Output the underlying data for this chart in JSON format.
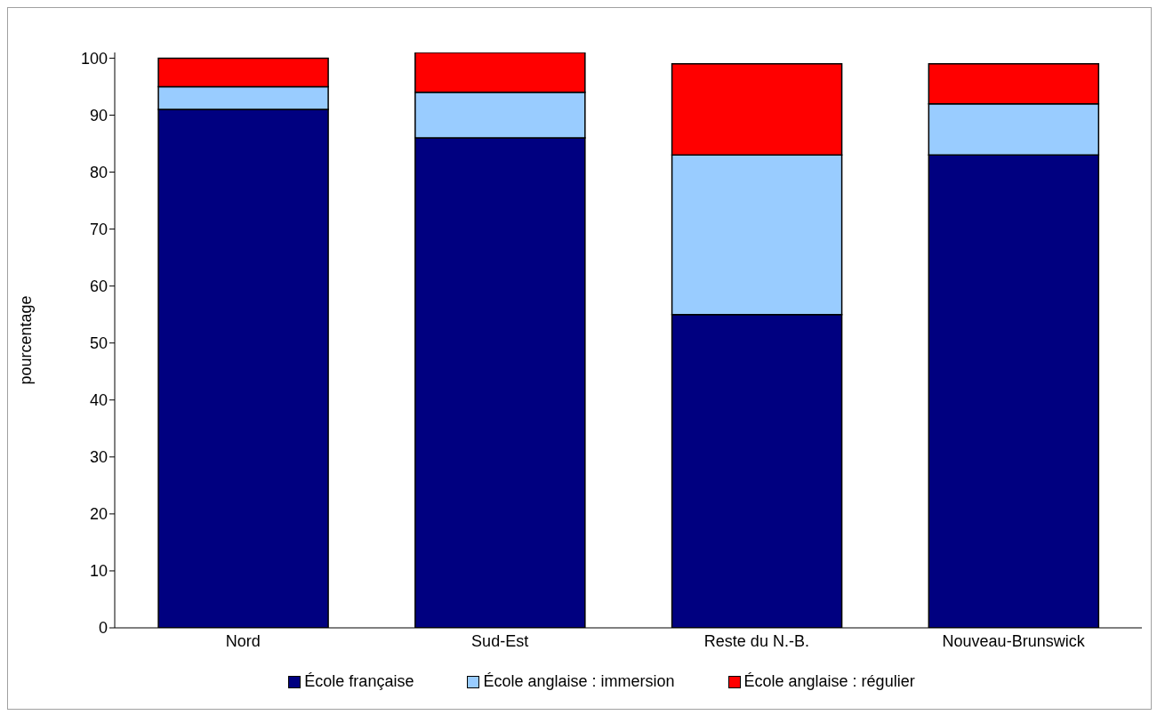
{
  "chart_data": {
    "type": "bar",
    "stacked": true,
    "ylabel": "pourcentage",
    "categories": [
      "Nord",
      "Sud-Est",
      "Reste du N.-B.",
      "Nouveau-Brunswick"
    ],
    "series": [
      {
        "name": "École française",
        "color": "#000080",
        "values": [
          91,
          86,
          55,
          83
        ]
      },
      {
        "name": "École anglaise : immersion",
        "color": "#99ccff",
        "values": [
          4,
          8,
          28,
          9
        ]
      },
      {
        "name": "École anglaise : régulier",
        "color": "#ff0000",
        "values": [
          5,
          7,
          16,
          7
        ]
      }
    ],
    "ylim": [
      0,
      101
    ],
    "yticks": [
      0,
      10,
      20,
      30,
      40,
      50,
      60,
      70,
      80,
      90,
      100
    ],
    "grid": false,
    "legend": "bottom"
  }
}
